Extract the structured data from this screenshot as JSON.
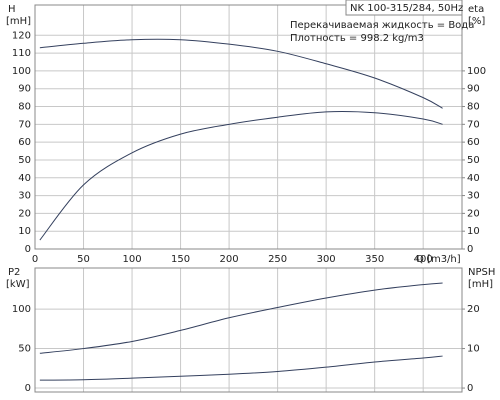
{
  "chart_data": [
    {
      "type": "line",
      "title": "NK 100-315/284, 50Hz",
      "annotations": [
        "Перекачиваемая жидкость = Вода",
        "Плотность = 998.2 kg/m3"
      ],
      "y_label": "H",
      "y_unit": "[mH]",
      "y2_label": "eta",
      "y2_unit": "[%]",
      "x_label": "Q [m3/h]",
      "x": [
        5,
        50,
        100,
        150,
        200,
        250,
        300,
        350,
        400,
        420
      ],
      "series": [
        {
          "color": "#34405e",
          "values": [
            113,
            115.5,
            117.5,
            117.5,
            115,
            111,
            104,
            96,
            85,
            79
          ]
        },
        {
          "color": "#34405e",
          "axis": "y2",
          "values": [
            5,
            36,
            54,
            64.5,
            70,
            74,
            77,
            76.5,
            73,
            70
          ]
        }
      ],
      "xlim": [
        0,
        440
      ],
      "xticks": [
        0,
        50,
        100,
        150,
        200,
        250,
        300,
        350,
        400
      ],
      "ylim": [
        0,
        137
      ],
      "yticks": [
        0,
        10,
        20,
        30,
        40,
        50,
        60,
        70,
        80,
        90,
        100,
        110,
        120
      ],
      "y2lim": [
        0,
        137
      ],
      "y2ticks": [
        0,
        10,
        20,
        30,
        40,
        50,
        60,
        70,
        80,
        90,
        100
      ],
      "grid": true,
      "xtick_labels": true
    },
    {
      "type": "line",
      "y_label": "P2",
      "y_unit": "[kW]",
      "y2_label": "NPSH",
      "y2_unit": "[mH]",
      "x": [
        5,
        50,
        100,
        150,
        200,
        250,
        300,
        350,
        400,
        420
      ],
      "series": [
        {
          "color": "#34405e",
          "values": [
            44,
            50,
            59,
            73,
            89,
            102,
            114,
            124,
            131,
            133
          ]
        },
        {
          "color": "#34405e",
          "axis": "y2",
          "values": [
            2,
            2.1,
            2.5,
            3,
            3.5,
            4.2,
            5.3,
            6.6,
            7.6,
            8.1
          ]
        }
      ],
      "xlim": [
        0,
        440
      ],
      "xticks": [
        0,
        50,
        100,
        150,
        200,
        250,
        300,
        350,
        400
      ],
      "ylim": [
        -5,
        152
      ],
      "yticks": [
        0,
        50,
        100
      ],
      "y2lim": [
        -1,
        30.4
      ],
      "y2ticks": [
        0,
        10,
        20
      ],
      "grid": true,
      "xtick_labels": false
    }
  ]
}
